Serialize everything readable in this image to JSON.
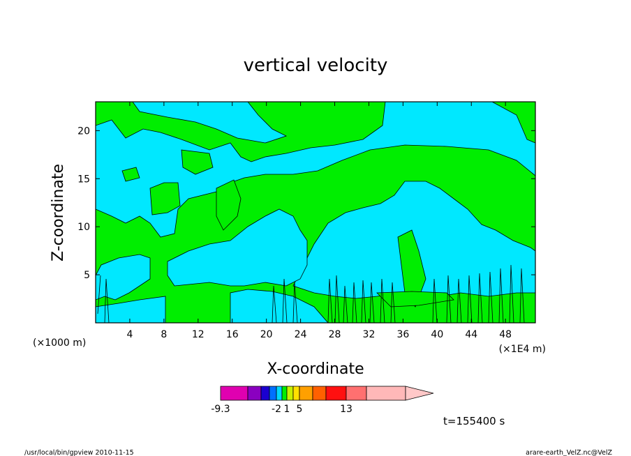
{
  "chart_data": {
    "type": "heatmap",
    "title": "vertical velocity",
    "xlabel": "X-coordinate",
    "ylabel": "Z-coordinate",
    "x_unit_left": "(×1000 m)",
    "x_unit_right": "(×1E4 m)",
    "xlim": [
      0,
      51.5
    ],
    "ylim": [
      0,
      23
    ],
    "x_ticks": [
      4,
      8,
      12,
      16,
      20,
      24,
      28,
      32,
      36,
      40,
      44,
      48
    ],
    "y_ticks": [
      5,
      10,
      15,
      20
    ],
    "fill_colors": {
      "negative": "#00e8ff",
      "positive": "#00ee00",
      "contour": "#000000"
    },
    "colorbar": {
      "segments": [
        {
          "color": "#e000b0"
        },
        {
          "color": "#8a00c0"
        },
        {
          "color": "#1a00d0"
        },
        {
          "color": "#0070ff"
        },
        {
          "color": "#00d8ff"
        },
        {
          "color": "#00ee00"
        },
        {
          "color": "#c8f000"
        },
        {
          "color": "#ffe000"
        },
        {
          "color": "#ffa000"
        },
        {
          "color": "#ff6000"
        },
        {
          "color": "#ff1010"
        },
        {
          "color": "#ff7070"
        },
        {
          "color": "#ffb8b8"
        }
      ],
      "labels": [
        {
          "text": "-9.3",
          "segment": 0
        },
        {
          "text": "-2",
          "segment": 4
        },
        {
          "text": "1",
          "segment": 6
        },
        {
          "text": "5",
          "segment": 8
        },
        {
          "text": "13",
          "segment": 11
        }
      ]
    },
    "time_label": "t=155400 s"
  },
  "footer": {
    "left": "/usr/local/bin/gpview  2010-11-15",
    "right": "arare-earth_VelZ.nc@VelZ"
  }
}
